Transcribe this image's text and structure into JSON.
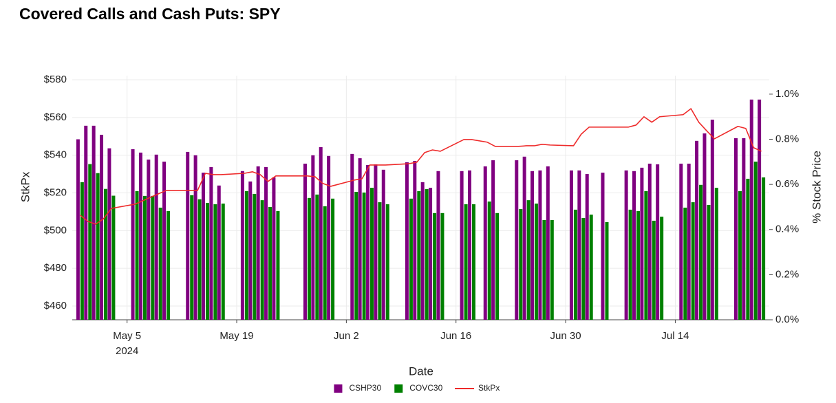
{
  "chart_data": {
    "type": "bar",
    "title": "Covered Calls and Cash Puts: SPY",
    "x_label": "Date",
    "y_label": "StkPx",
    "y2_label": "% Stock Price",
    "x": [
      "2024-04-29",
      "2024-04-30",
      "2024-05-01",
      "2024-05-02",
      "2024-05-03",
      "2024-05-06",
      "2024-05-07",
      "2024-05-08",
      "2024-05-09",
      "2024-05-10",
      "2024-05-13",
      "2024-05-14",
      "2024-05-15",
      "2024-05-16",
      "2024-05-17",
      "2024-05-20",
      "2024-05-21",
      "2024-05-22",
      "2024-05-23",
      "2024-05-24",
      "2024-05-28",
      "2024-05-29",
      "2024-05-30",
      "2024-05-31",
      "2024-06-03",
      "2024-06-04",
      "2024-06-05",
      "2024-06-06",
      "2024-06-07",
      "2024-06-10",
      "2024-06-11",
      "2024-06-12",
      "2024-06-13",
      "2024-06-14",
      "2024-06-17",
      "2024-06-18",
      "2024-06-20",
      "2024-06-21",
      "2024-06-24",
      "2024-06-25",
      "2024-06-26",
      "2024-06-27",
      "2024-06-28",
      "2024-07-01",
      "2024-07-02",
      "2024-07-03",
      "2024-07-05",
      "2024-07-08",
      "2024-07-09",
      "2024-07-10",
      "2024-07-11",
      "2024-07-12",
      "2024-07-15",
      "2024-07-16",
      "2024-07-17",
      "2024-07-18",
      "2024-07-19",
      "2024-07-22",
      "2024-07-23",
      "2024-07-24",
      "2024-07-25"
    ],
    "xlim": [
      "2024-04-28",
      "2024-07-26"
    ],
    "xticks": [
      {
        "value": "2024-05-05",
        "label": "May 5",
        "year": "2024"
      },
      {
        "value": "2024-05-19",
        "label": "May 19"
      },
      {
        "value": "2024-06-02",
        "label": "Jun 2"
      },
      {
        "value": "2024-06-16",
        "label": "Jun 16"
      },
      {
        "value": "2024-06-30",
        "label": "Jun 30"
      },
      {
        "value": "2024-07-14",
        "label": "Jul 14"
      }
    ],
    "ylim": [
      452.7,
      582.2
    ],
    "yticks": [
      {
        "value": 460,
        "label": "$460"
      },
      {
        "value": 480,
        "label": "$480"
      },
      {
        "value": 500,
        "label": "$500"
      },
      {
        "value": 520,
        "label": "$520"
      },
      {
        "value": 540,
        "label": "$540"
      },
      {
        "value": 560,
        "label": "$560"
      },
      {
        "value": 580,
        "label": "$580"
      }
    ],
    "y2lim": [
      0,
      1.082
    ],
    "y2ticks": [
      {
        "value": 0,
        "label": "0.0%"
      },
      {
        "value": 0.2,
        "label": "0.2%"
      },
      {
        "value": 0.4,
        "label": "0.4%"
      },
      {
        "value": 0.6,
        "label": "0.6%"
      },
      {
        "value": 0.8,
        "label": "0.8%"
      },
      {
        "value": 1.0,
        "label": "1.0%"
      }
    ],
    "grid": true,
    "legend": "bottom",
    "series": [
      {
        "name": "CSHP30",
        "type": "bar",
        "axis": "y2",
        "color": "#800080",
        "values": [
          0.8,
          0.86,
          0.86,
          0.82,
          0.76,
          0.756,
          0.741,
          0.71,
          0.732,
          0.701,
          0.744,
          0.729,
          0.652,
          0.677,
          0.595,
          0.659,
          0.613,
          0.68,
          0.677,
          0.631,
          0.692,
          0.729,
          0.765,
          0.726,
          0.735,
          0.716,
          0.686,
          0.689,
          0.665,
          0.698,
          0.704,
          0.61,
          0.585,
          0.659,
          0.659,
          0.662,
          0.68,
          0.707,
          0.707,
          0.723,
          0.659,
          0.662,
          0.68,
          0.662,
          0.662,
          0.646,
          0.652,
          0.662,
          0.659,
          0.674,
          0.692,
          0.689,
          0.692,
          0.692,
          0.793,
          0.826,
          0.887,
          0.805,
          0.805,
          0.976,
          0.976
        ]
      },
      {
        "name": "COVC30",
        "type": "bar",
        "axis": "y2",
        "color": "#008000",
        "values": [
          0.61,
          0.69,
          0.65,
          0.58,
          0.55,
          0.57,
          0.549,
          0.549,
          0.497,
          0.482,
          0.552,
          0.534,
          0.518,
          0.512,
          0.515,
          0.57,
          0.558,
          0.53,
          0.5,
          0.482,
          0.54,
          0.555,
          0.503,
          0.537,
          0.567,
          0.564,
          0.585,
          0.521,
          0.512,
          0.537,
          0.57,
          0.579,
          0.473,
          0.473,
          0.512,
          0.512,
          0.524,
          0.473,
          0.491,
          0.53,
          0.515,
          0.442,
          0.442,
          0.488,
          0.451,
          0.466,
          0.433,
          0.488,
          0.482,
          0.57,
          0.439,
          0.457,
          0.497,
          0.521,
          0.598,
          0.509,
          0.585,
          0.57,
          0.625,
          0.701,
          0.631
        ]
      },
      {
        "name": "StkPx",
        "type": "line",
        "axis": "y",
        "color": "#ee2a2a",
        "values": [
          508.2,
          504.9,
          503.4,
          506.3,
          511.8,
          514.0,
          515.8,
          517.7,
          519.5,
          521.3,
          521.3,
          521.3,
          530.4,
          529.7,
          529.7,
          530.4,
          531.2,
          529.7,
          526.1,
          529.0,
          529.0,
          528.6,
          525.0,
          523.5,
          526.8,
          527.5,
          534.8,
          534.8,
          534.8,
          535.5,
          536.3,
          541.4,
          542.8,
          542.1,
          548.3,
          548.3,
          546.9,
          544.7,
          544.7,
          545.0,
          545.0,
          545.8,
          545.4,
          545.0,
          551.2,
          554.9,
          554.9,
          554.9,
          556.0,
          560.4,
          557.5,
          560.4,
          561.5,
          564.7,
          557.5,
          553.0,
          548.7,
          555.3,
          554.2,
          544.0,
          542.1
        ]
      }
    ]
  }
}
